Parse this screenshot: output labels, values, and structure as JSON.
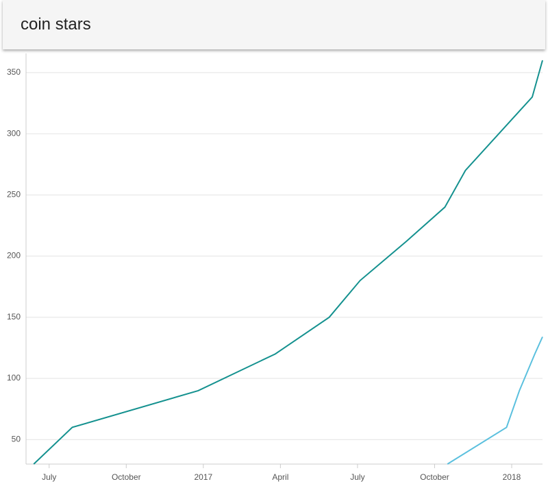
{
  "chart_data": {
    "type": "line",
    "title": "coin stars",
    "xlim": [
      -0.9,
      19.2
    ],
    "xticks": [
      {
        "value": 0,
        "label": "July"
      },
      {
        "value": 3,
        "label": "October"
      },
      {
        "value": 6,
        "label": "2017"
      },
      {
        "value": 9,
        "label": "April"
      },
      {
        "value": 12,
        "label": "July"
      },
      {
        "value": 15,
        "label": "October"
      },
      {
        "value": 18,
        "label": "2018"
      }
    ],
    "ylim": [
      30,
      360
    ],
    "yticks": [
      50,
      100,
      150,
      200,
      250,
      300,
      350
    ],
    "grid": true,
    "series": [
      {
        "color": "#14918f",
        "x": [
          -0.6,
          0.9,
          5.8,
          8.8,
          10.9,
          12.1,
          13.9,
          15.4,
          16.2,
          18.8,
          19.2
        ],
        "values": [
          30,
          60,
          90,
          120,
          150,
          180,
          212,
          240,
          270,
          330,
          360
        ]
      },
      {
        "color": "#5bc0de",
        "x": [
          15.5,
          17.8,
          18.3,
          18.9,
          19.2
        ],
        "values": [
          30,
          60,
          90,
          120,
          134
        ]
      }
    ]
  }
}
